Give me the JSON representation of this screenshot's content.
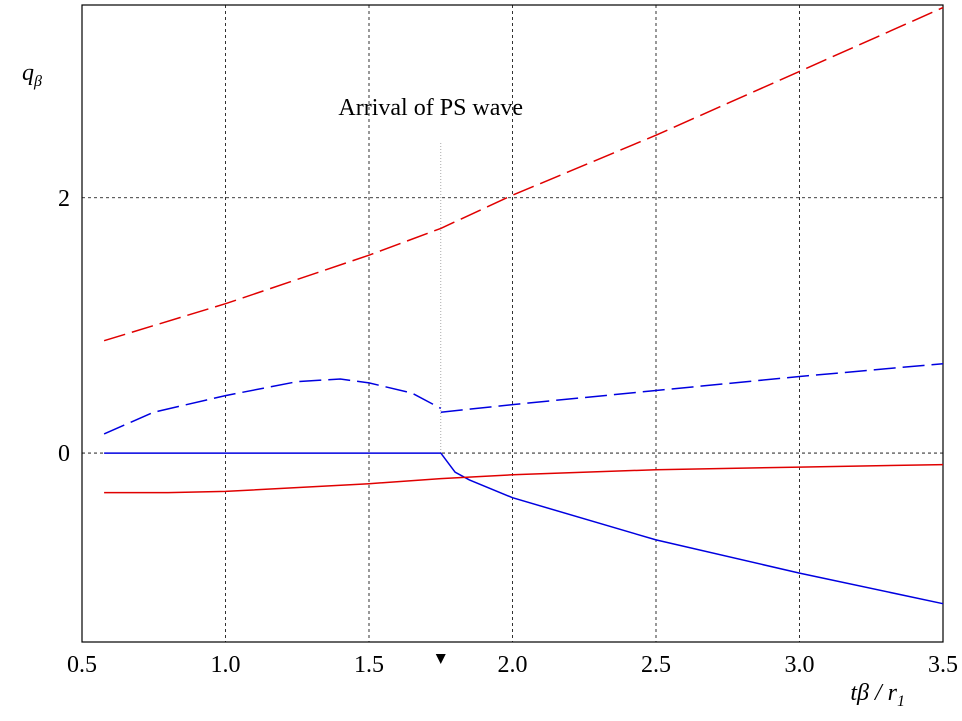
{
  "chart_data": {
    "type": "line",
    "xlabel": {
      "text": "tβ / r",
      "subscript": "1"
    },
    "ylabel": {
      "text": "q",
      "subscript": "β"
    },
    "annotation": {
      "text": "Arrival of PS wave",
      "x": 1.75
    },
    "xlim": [
      0.5,
      3.5
    ],
    "ylim": [
      -1.48,
      3.51
    ],
    "xticks": [
      0.5,
      {
        "value": 1,
        "label": "1.0"
      },
      1.5,
      {
        "value": 2,
        "label": "2.0"
      },
      2.5,
      {
        "value": 3,
        "label": "3.0"
      },
      3.5
    ],
    "yticks": [
      0,
      2
    ],
    "grid": true,
    "series": [
      {
        "color": "#e00000",
        "dash": "dashed",
        "x": [
          0.577,
          1.0,
          1.5,
          1.75,
          2.0,
          2.5,
          3.0,
          3.5
        ],
        "values": [
          0.88,
          1.17,
          1.55,
          1.76,
          2.02,
          2.49,
          2.99,
          3.49
        ]
      },
      {
        "color": "#0000e0",
        "dash": "dashed",
        "x": [
          0.577,
          0.75,
          1.0,
          1.25,
          1.4,
          1.5,
          1.65,
          1.75,
          1.75,
          1.75,
          2.0,
          2.5,
          3.0,
          3.5
        ],
        "values": [
          0.15,
          0.32,
          0.45,
          0.56,
          0.58,
          0.55,
          0.47,
          0.35,
          null,
          0.32,
          0.38,
          0.49,
          0.6,
          0.7
        ]
      },
      {
        "color": "#0000e0",
        "dash": "solid",
        "x": [
          0.577,
          1.0,
          1.5,
          1.75,
          1.8,
          1.85,
          2.0,
          2.5,
          3.0,
          3.5
        ],
        "values": [
          0,
          0,
          0,
          0,
          -0.15,
          -0.21,
          -0.35,
          -0.68,
          -0.94,
          -1.18
        ]
      },
      {
        "color": "#e00000",
        "dash": "solid",
        "x": [
          0.577,
          0.8,
          1.0,
          1.5,
          1.75,
          2.0,
          2.5,
          3.0,
          3.5
        ],
        "values": [
          -0.31,
          -0.31,
          -0.3,
          -0.24,
          -0.2,
          -0.17,
          -0.13,
          -0.11,
          -0.09
        ]
      }
    ]
  }
}
